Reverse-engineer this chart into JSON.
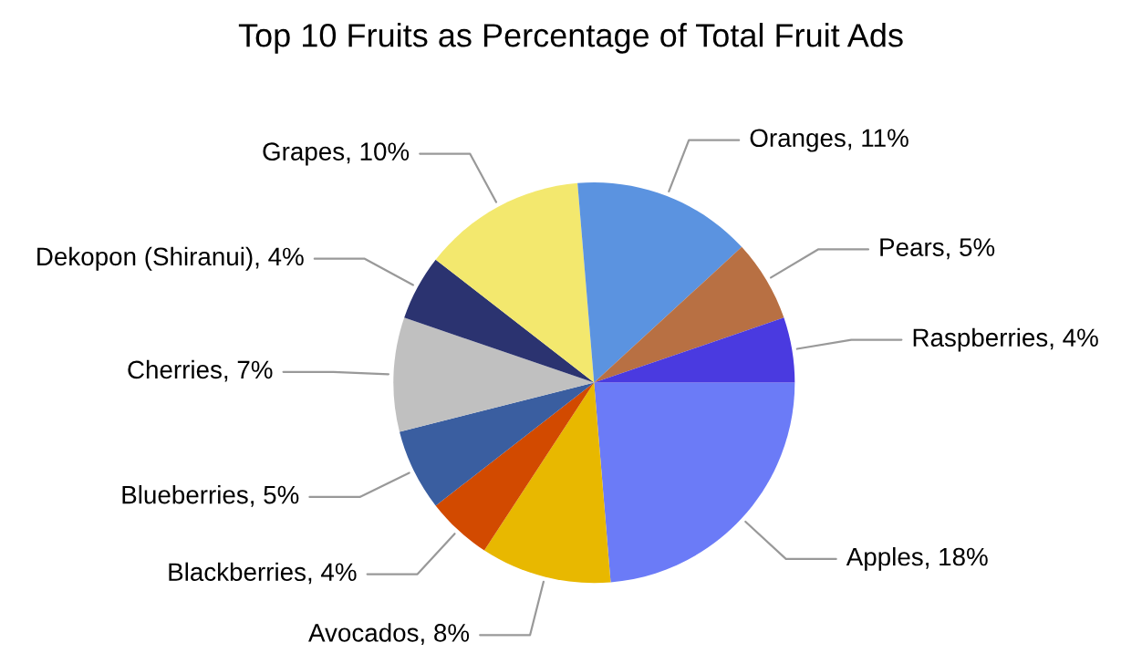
{
  "chart_data": {
    "type": "pie",
    "title": "Top 10 Fruits as Percentage of Total Fruit Ads",
    "categories": [
      "Apples",
      "Avocados",
      "Blackberries",
      "Blueberries",
      "Cherries",
      "Dekopon (Shiranui)",
      "Grapes",
      "Oranges",
      "Pears",
      "Raspberries"
    ],
    "values": [
      18,
      8,
      4,
      5,
      7,
      4,
      10,
      11,
      5,
      4
    ],
    "value_labels": [
      "18%",
      "8%",
      "4%",
      "5%",
      "7%",
      "4%",
      "10%",
      "11%",
      "5%",
      "4%"
    ],
    "colors": [
      "#6b7bf7",
      "#e8b800",
      "#d24a00",
      "#3a5ea0",
      "#c0c0c0",
      "#2b3370",
      "#f3e86e",
      "#5b93e0",
      "#b87043",
      "#4a3ae0"
    ]
  }
}
